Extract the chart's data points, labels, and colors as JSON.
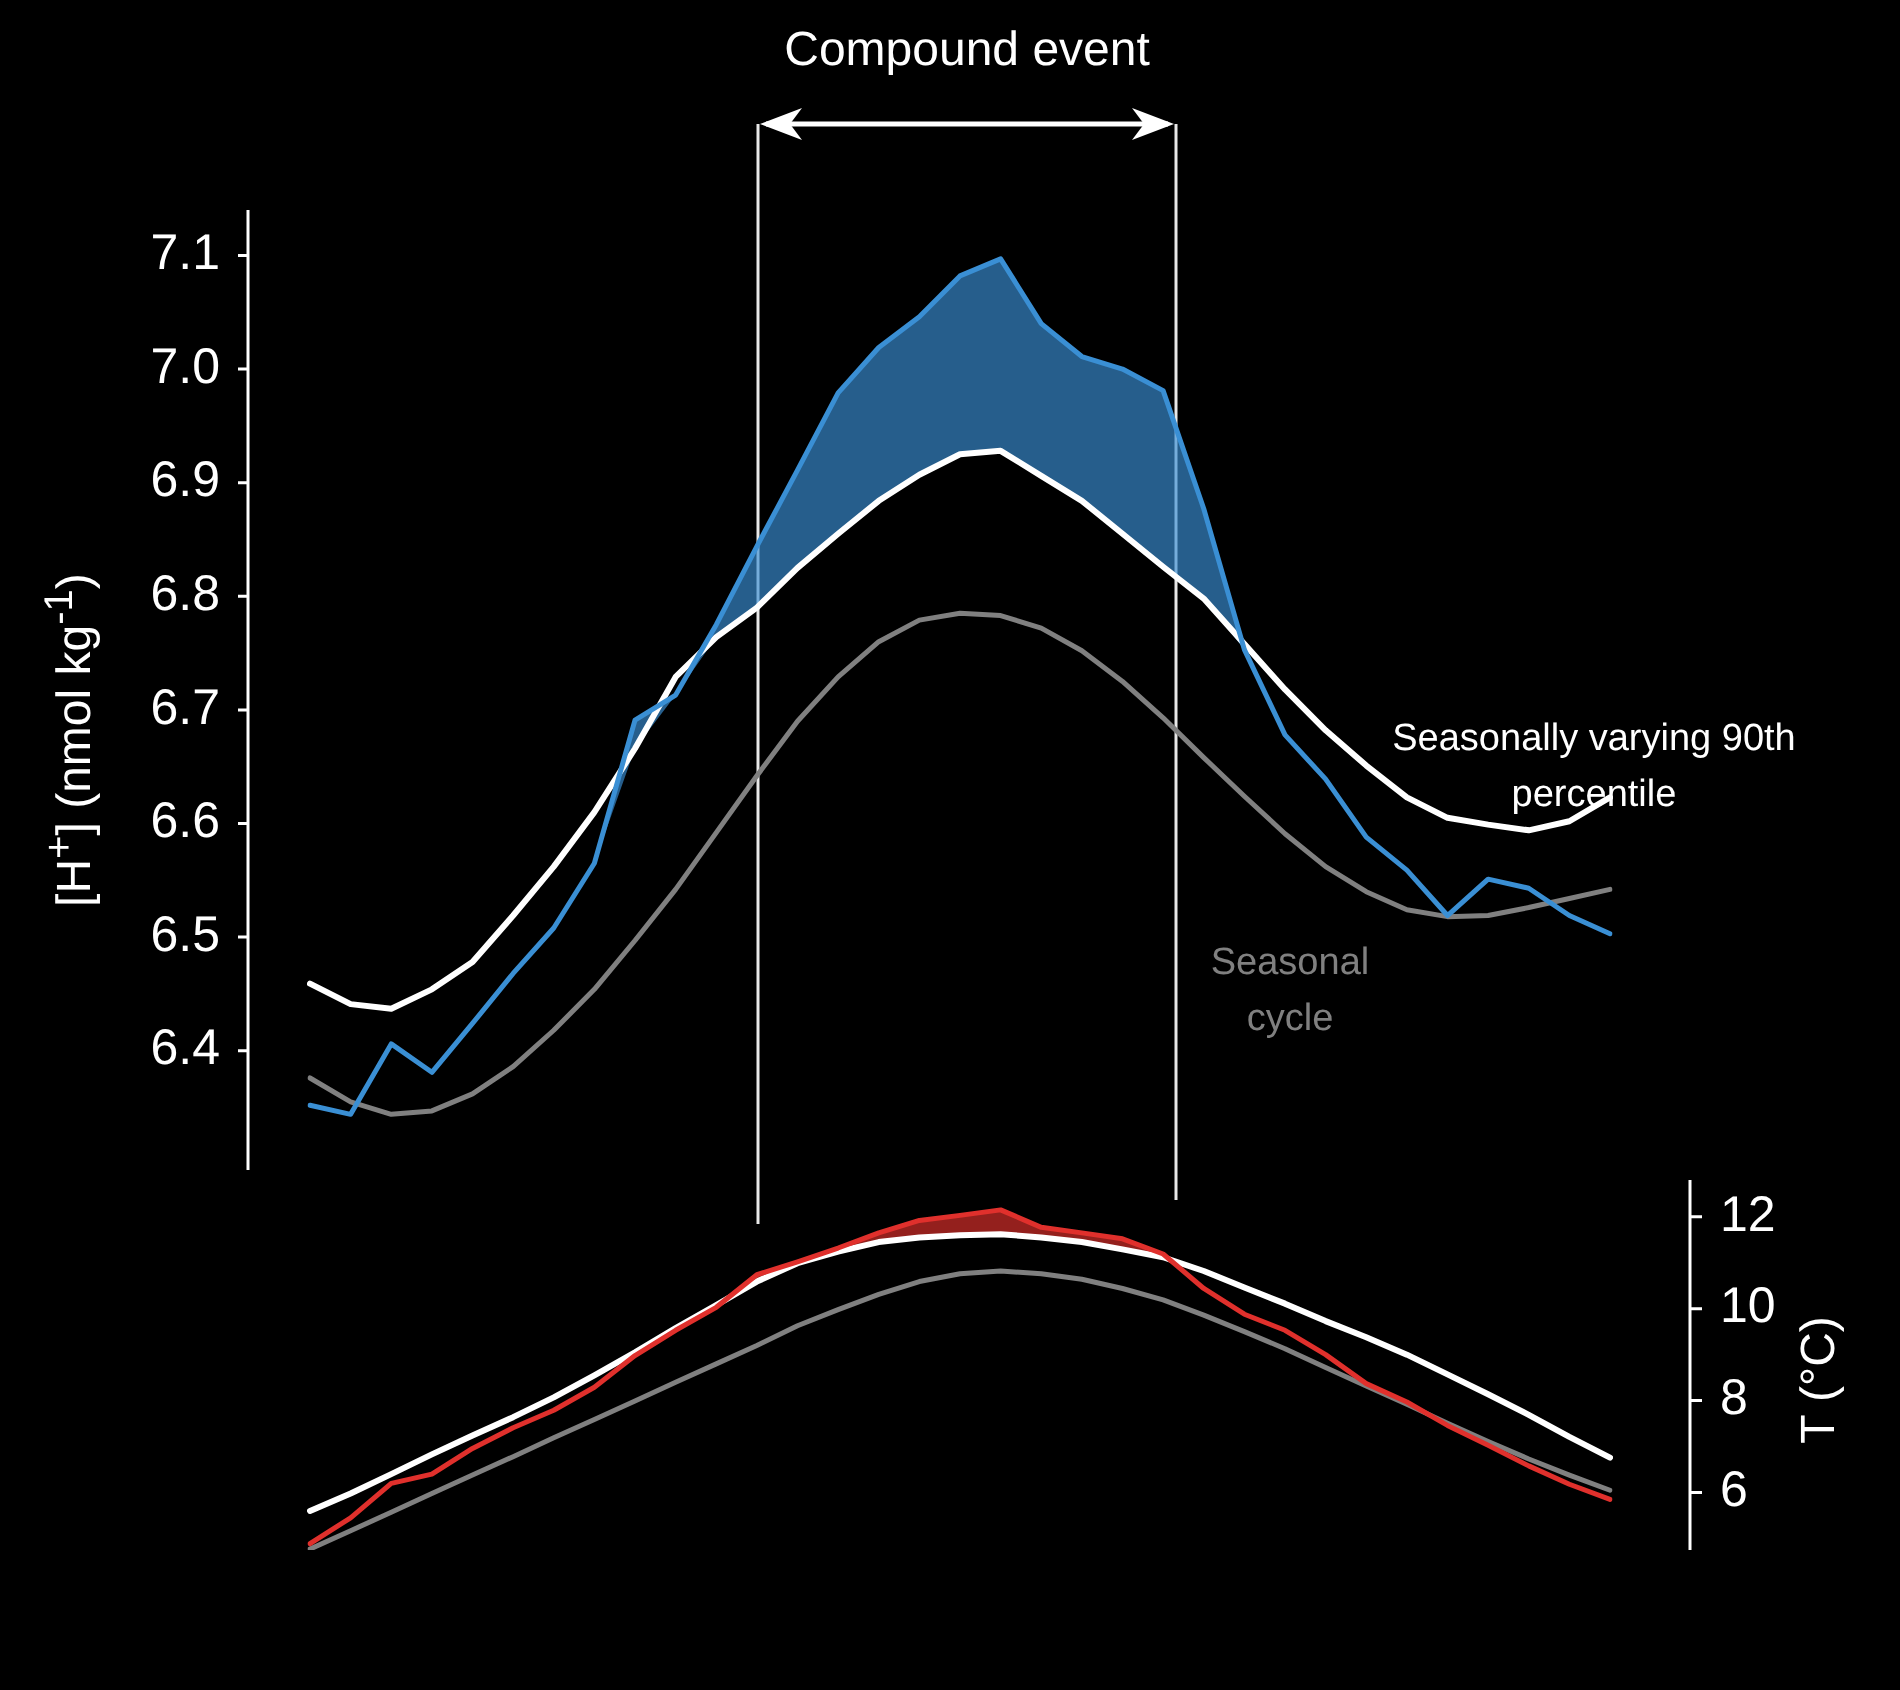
{
  "chart_data": [
    {
      "type": "line",
      "ylabel": "[H$^{+}$] (nmol kg$^{-1}$)",
      "annotations": [
        "Compound event"
      ],
      "categories": [
        null,
        null,
        null,
        null,
        null,
        null,
        null,
        null,
        null,
        null,
        null,
        null,
        null,
        null,
        null,
        null,
        null,
        null,
        null,
        null,
        null,
        null,
        null,
        null,
        null,
        null,
        null,
        null,
        null,
        null,
        null,
        null,
        null
      ],
      "series": [
        {
          "color": "#3a8fd4",
          "values": [
            6.352,
            6.344,
            6.406,
            6.381,
            6.424,
            6.468,
            6.508,
            6.565,
            6.691,
            6.713,
            6.775,
            6.844,
            6.911,
            6.979,
            7.019,
            7.046,
            7.082,
            7.097,
            7.04,
            7.011,
            7.0,
            6.981,
            6.877,
            6.753,
            6.678,
            6.639,
            6.588,
            6.559,
            6.519,
            6.551,
            6.543,
            6.519,
            6.503
          ],
          "lower": [
            6.352,
            6.344,
            6.406,
            6.381,
            6.424,
            6.468,
            6.508,
            6.565,
            6.666,
            6.713,
            6.764,
            6.79,
            6.825,
            6.855,
            6.884,
            6.907,
            6.925,
            6.928,
            6.906,
            6.884,
            6.855,
            6.826,
            6.798,
            6.753,
            6.678,
            6.639,
            6.588,
            6.559,
            6.519,
            6.551,
            6.543,
            6.519,
            6.503
          ],
          "upper": [
            6.352,
            6.344,
            6.406,
            6.381,
            6.424,
            6.468,
            6.508,
            6.565,
            6.691,
            6.713,
            6.775,
            6.844,
            6.911,
            6.979,
            7.019,
            7.046,
            7.082,
            7.097,
            7.04,
            7.011,
            7.0,
            6.981,
            6.877,
            6.753,
            6.678,
            6.639,
            6.588,
            6.559,
            6.519,
            6.551,
            6.543,
            6.519,
            6.503
          ]
        },
        {
          "name": "Seasonally varying 90th percentile",
          "color": "#ffffff",
          "values": [
            6.459,
            6.441,
            6.437,
            6.454,
            6.478,
            6.519,
            6.562,
            6.61,
            6.666,
            6.729,
            6.764,
            6.79,
            6.825,
            6.855,
            6.884,
            6.907,
            6.925,
            6.928,
            6.906,
            6.884,
            6.855,
            6.826,
            6.798,
            6.758,
            6.718,
            6.682,
            6.651,
            6.623,
            6.605,
            6.599,
            6.594,
            6.602,
            6.623
          ]
        },
        {
          "name": "Seasonal cycle",
          "color": "#808080",
          "values": [
            6.376,
            6.355,
            6.344,
            6.347,
            6.362,
            6.386,
            6.418,
            6.454,
            6.497,
            6.542,
            6.592,
            6.642,
            6.69,
            6.729,
            6.76,
            6.779,
            6.785,
            6.783,
            6.772,
            6.752,
            6.725,
            6.693,
            6.658,
            6.624,
            6.591,
            6.562,
            6.54,
            6.524,
            6.518,
            6.519,
            6.526,
            6.534,
            6.542
          ]
        }
      ],
      "ylim": [
        6.295,
        7.14
      ],
      "yticks": [
        6.4,
        6.5,
        6.6,
        6.7,
        6.8,
        6.9,
        {
          "value": 7,
          "label": "7.0"
        },
        7.1
      ],
      "grid": false,
      "legend": false
    },
    {
      "type": "line",
      "ylabel": "T (°C)",
      "categories": [
        null,
        null,
        null,
        null,
        null,
        null,
        null,
        null,
        null,
        null,
        null,
        null,
        null,
        null,
        null,
        null,
        null,
        null,
        null,
        null,
        null,
        null,
        null,
        null,
        null,
        null,
        null,
        null,
        null,
        null,
        null,
        null,
        null
      ],
      "series": [
        {
          "color": "#e0302c",
          "values": [
            4.89,
            5.45,
            6.2,
            6.4,
            6.96,
            7.41,
            7.79,
            8.29,
            8.98,
            9.53,
            10.03,
            10.74,
            11.02,
            11.32,
            11.65,
            11.92,
            12.03,
            12.15,
            11.77,
            11.65,
            11.52,
            11.19,
            10.44,
            9.88,
            9.53,
            9.0,
            8.37,
            7.97,
            7.46,
            7.03,
            6.58,
            6.18,
            5.85
          ],
          "lower": [
            4.89,
            5.45,
            6.2,
            6.4,
            6.96,
            7.41,
            7.79,
            8.29,
            8.98,
            9.53,
            10.03,
            10.59,
            10.99,
            11.24,
            11.45,
            11.55,
            11.6,
            11.62,
            11.55,
            11.45,
            11.29,
            11.12,
            10.44,
            9.88,
            9.53,
            9.0,
            8.37,
            7.97,
            7.46,
            7.03,
            6.58,
            6.18,
            5.85
          ],
          "upper": [
            4.89,
            5.45,
            6.2,
            6.4,
            6.96,
            7.41,
            7.79,
            8.29,
            8.98,
            9.53,
            10.03,
            10.74,
            11.02,
            11.32,
            11.65,
            11.92,
            12.03,
            12.15,
            11.77,
            11.65,
            11.52,
            11.19,
            10.44,
            9.88,
            9.53,
            9.0,
            8.37,
            7.97,
            7.46,
            7.03,
            6.58,
            6.18,
            5.85
          ]
        },
        {
          "color": "#ffffff",
          "values": [
            5.6,
            5.98,
            6.4,
            6.83,
            7.24,
            7.64,
            8.07,
            8.55,
            9.05,
            9.58,
            10.08,
            10.59,
            10.99,
            11.24,
            11.45,
            11.55,
            11.6,
            11.62,
            11.55,
            11.45,
            11.29,
            11.12,
            10.82,
            10.46,
            10.11,
            9.73,
            9.38,
            9.0,
            8.57,
            8.14,
            7.69,
            7.21,
            6.76
          ]
        },
        {
          "color": "#808080",
          "values": [
            4.77,
            5.17,
            5.57,
            5.98,
            6.38,
            6.78,
            7.19,
            7.59,
            7.99,
            8.4,
            8.8,
            9.2,
            9.63,
            9.98,
            10.31,
            10.59,
            10.76,
            10.82,
            10.76,
            10.64,
            10.44,
            10.19,
            9.86,
            9.5,
            9.13,
            8.72,
            8.32,
            7.92,
            7.51,
            7.11,
            6.73,
            6.38,
            6.05
          ]
        }
      ],
      "ylim": [
        4.75,
        12.8
      ],
      "yticks": [
        6,
        8,
        10,
        12
      ],
      "grid": false,
      "legend": false
    }
  ]
}
